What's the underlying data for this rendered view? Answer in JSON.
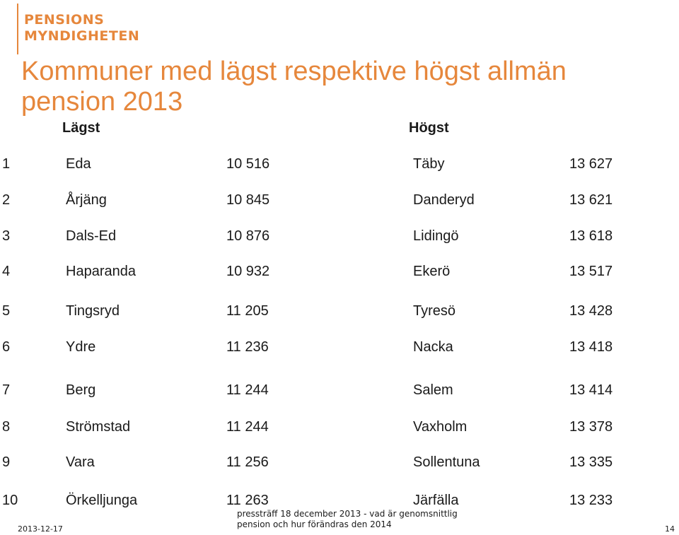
{
  "logo": {
    "line1": "PENSIONS",
    "line2": "MYNDIGHETEN"
  },
  "title": "Kommuner med lägst respektive högst allmän pension 2013",
  "headers": {
    "lowest": "Lägst",
    "highest": "Högst"
  },
  "rows": [
    {
      "rank": "1",
      "lowest_name": "Eda",
      "lowest_value": "10 516",
      "highest_name": "Täby",
      "highest_value": "13 627"
    },
    {
      "rank": "2",
      "lowest_name": "Årjäng",
      "lowest_value": "10 845",
      "highest_name": "Danderyd",
      "highest_value": "13 621"
    },
    {
      "rank": "3",
      "lowest_name": "Dals-Ed",
      "lowest_value": "10 876",
      "highest_name": "Lidingö",
      "highest_value": "13 618"
    },
    {
      "rank": "4",
      "lowest_name": "Haparanda",
      "lowest_value": "10 932",
      "highest_name": "Ekerö",
      "highest_value": "13 517"
    },
    {
      "rank": "5",
      "lowest_name": "Tingsryd",
      "lowest_value": "11 205",
      "highest_name": "Tyresö",
      "highest_value": "13 428"
    },
    {
      "rank": "6",
      "lowest_name": "Ydre",
      "lowest_value": "11 236",
      "highest_name": "Nacka",
      "highest_value": "13 418"
    },
    {
      "rank": "7",
      "lowest_name": "Berg",
      "lowest_value": "11 244",
      "highest_name": "Salem",
      "highest_value": "13 414"
    },
    {
      "rank": "8",
      "lowest_name": "Strömstad",
      "lowest_value": "11 244",
      "highest_name": "Vaxholm",
      "highest_value": "13 378"
    },
    {
      "rank": "9",
      "lowest_name": "Vara",
      "lowest_value": "11 256",
      "highest_name": "Sollentuna",
      "highest_value": "13 335"
    },
    {
      "rank": "10",
      "lowest_name": "Örkelljunga",
      "lowest_value": "11 263",
      "highest_name": "Järfälla",
      "highest_value": "13 233"
    }
  ],
  "footer": {
    "date": "2013-12-17",
    "text": "pressträff 18 december 2013 - vad är genomsnittlig pension och hur förändras den 2014",
    "page": "14"
  },
  "colors": {
    "accent": "#e6873c",
    "text": "#1a1a1a"
  }
}
